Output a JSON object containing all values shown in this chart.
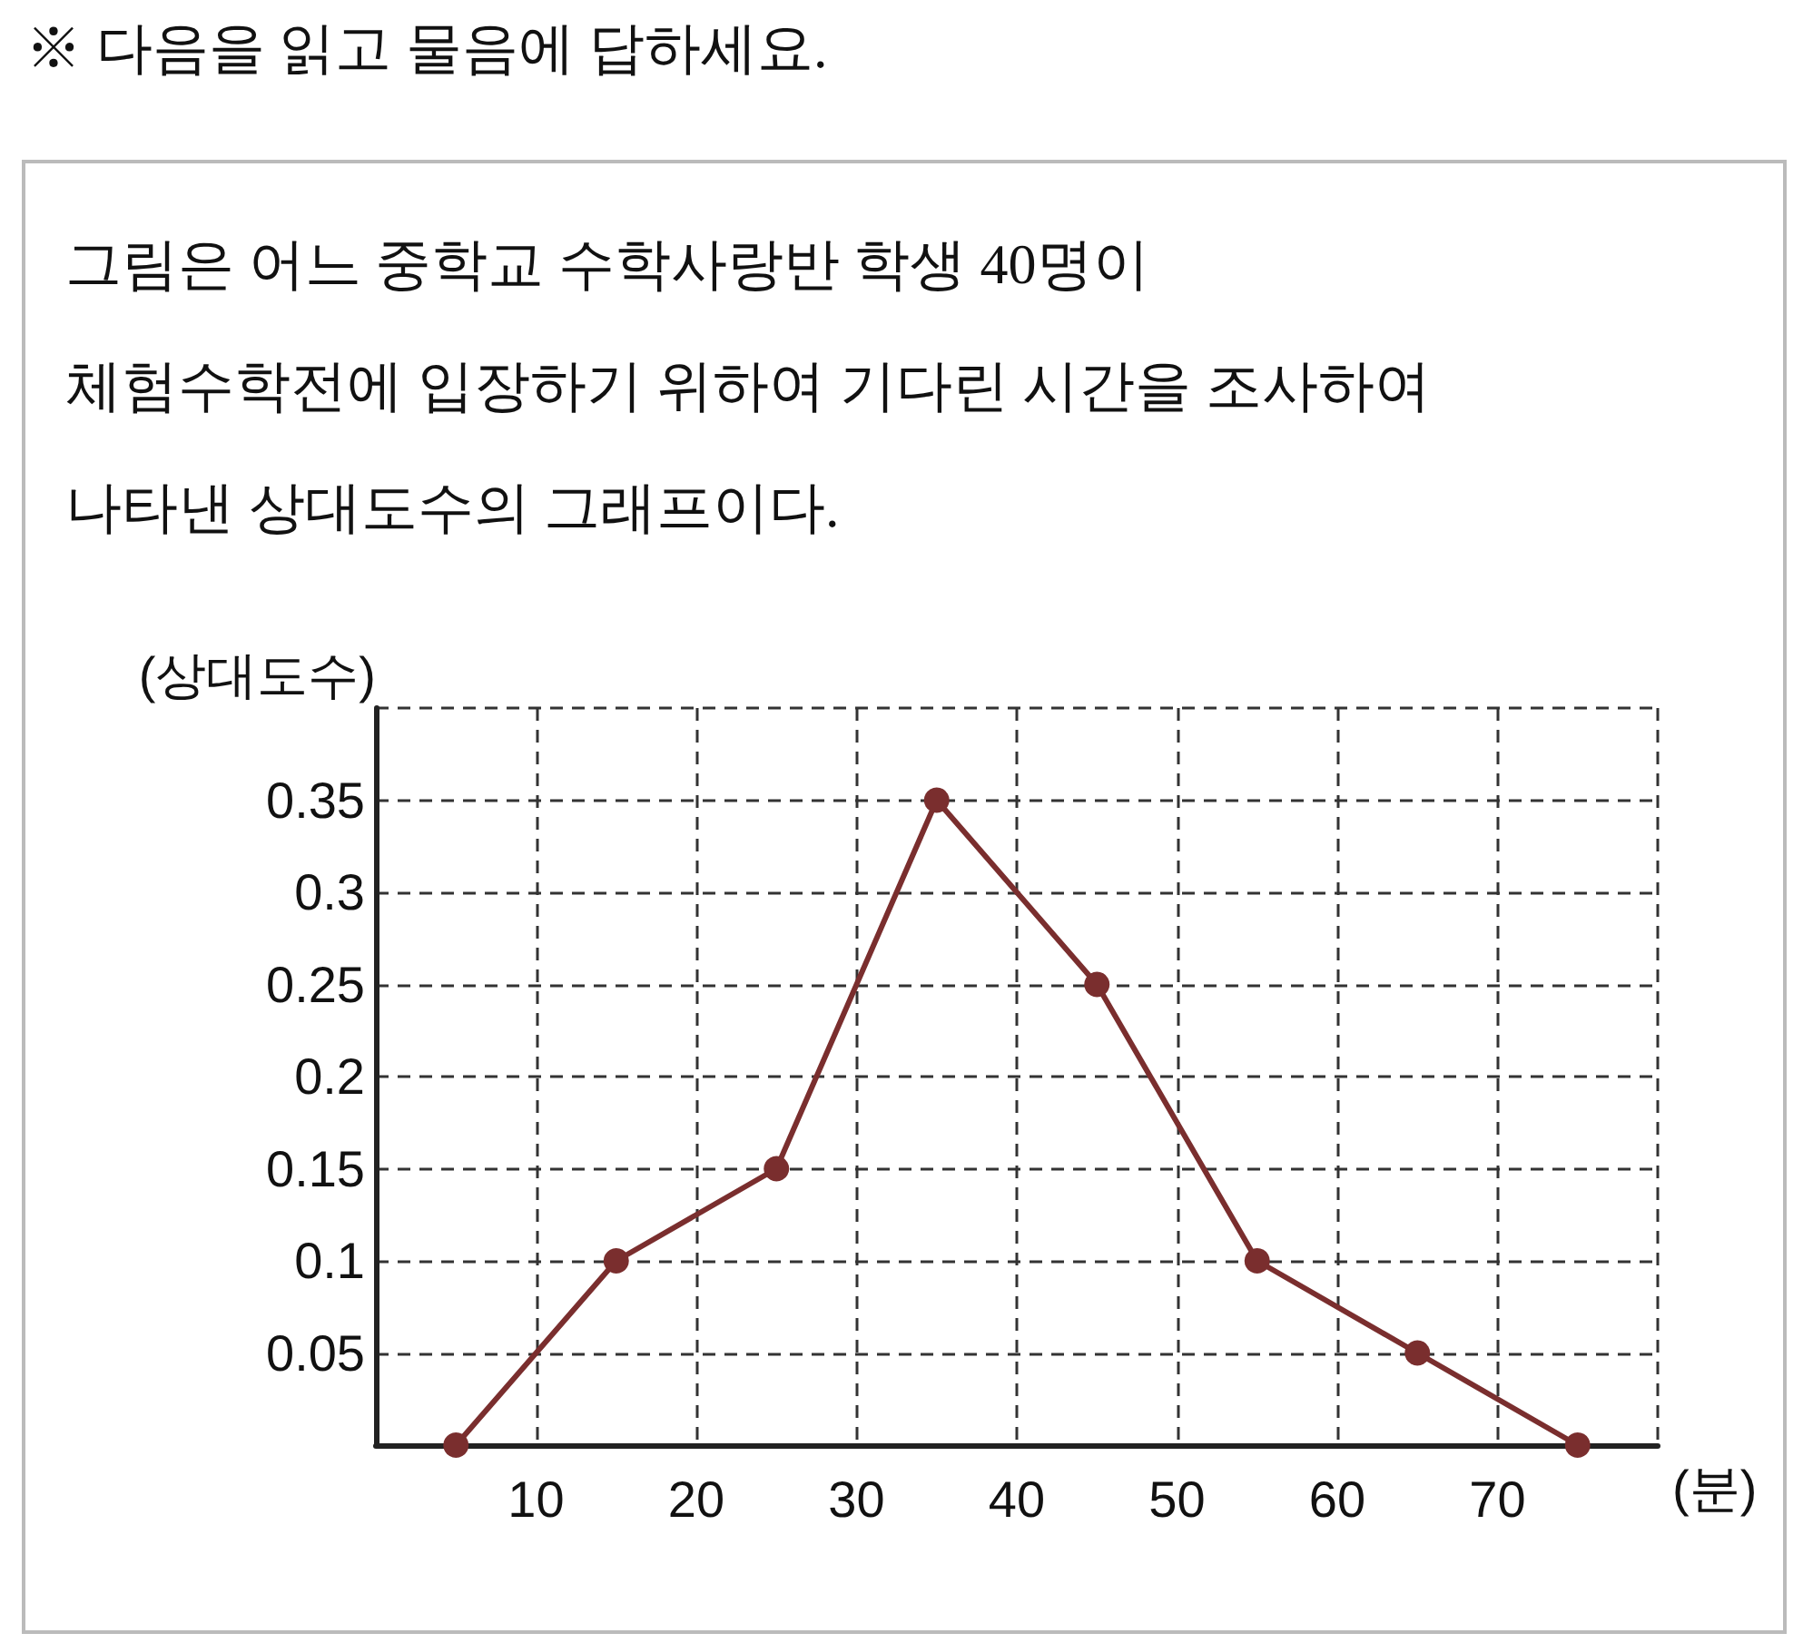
{
  "chart_data": {
    "type": "line",
    "title": "※ 다음을 읽고 물음에 답하세요.",
    "subtitle": "그림은 어느 중학교 수학사랑반 학생 40명이\n체험수학전에 입장하기 위하여 기다린 시간을 조사하여\n나타낸 상대도수의 그래프이다.",
    "xlabel": "(분)",
    "ylabel": "(상대도수)",
    "x": [
      5,
      15,
      25,
      35,
      45,
      55,
      65,
      75
    ],
    "series": [
      {
        "color": "#7a2e2e",
        "values": [
          0,
          0.1,
          0.15,
          0.35,
          0.25,
          0.1,
          0.05,
          0
        ]
      }
    ],
    "xlim": [
      0,
      80
    ],
    "xticks": [
      {
        "value": 0,
        "label": null
      },
      10,
      20,
      30,
      40,
      50,
      60,
      70,
      {
        "value": 80,
        "label": null
      }
    ],
    "ylim": [
      0,
      0.4
    ],
    "yticks": [
      {
        "value": 0,
        "label": null
      },
      0.05,
      0.1,
      0.15,
      0.2,
      0.25,
      0.3,
      0.35,
      {
        "value": 0.4,
        "label": null
      }
    ],
    "grid": true,
    "marker": "circle",
    "line_style": "solid"
  }
}
